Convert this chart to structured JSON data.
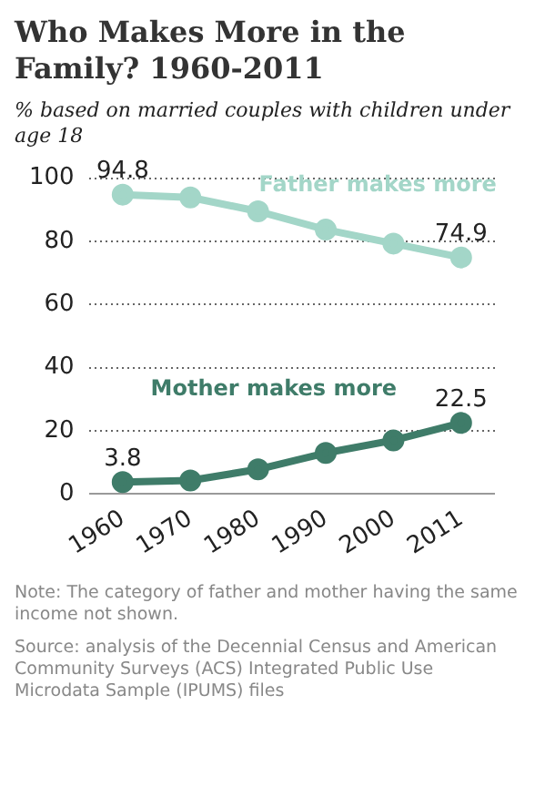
{
  "chart_data": {
    "type": "line",
    "title": "Who Makes More in the Family? 1960-2011",
    "subtitle": "% based on married couples with children under age 18",
    "categories": [
      "1960",
      "1970",
      "1980",
      "1990",
      "2000",
      "2011"
    ],
    "series": [
      {
        "name": "Father makes more",
        "color": "#a3d6c8",
        "values": [
          94.8,
          93.9,
          89.5,
          83.7,
          79.3,
          74.9
        ],
        "value_labels": [
          "94.8",
          null,
          null,
          null,
          null,
          "74.9"
        ]
      },
      {
        "name": "Mother makes more",
        "color": "#3f7c69",
        "values": [
          3.8,
          4.3,
          7.8,
          13,
          17,
          22.5
        ],
        "value_labels": [
          "3.8",
          null,
          null,
          null,
          null,
          "22.5"
        ]
      }
    ],
    "ylim": [
      0,
      100
    ],
    "yticks": [
      0,
      20,
      40,
      60,
      80,
      100
    ],
    "grid": "y",
    "legend": false,
    "marker": "circle",
    "line_style": "solid",
    "annotations": [
      "Note: The category of father and mother having the same income not shown.",
      "Source: analysis of the Decennial Census and American Community Surveys (ACS) Integrated Public Use Microdata Sample (IPUMS) files"
    ]
  }
}
